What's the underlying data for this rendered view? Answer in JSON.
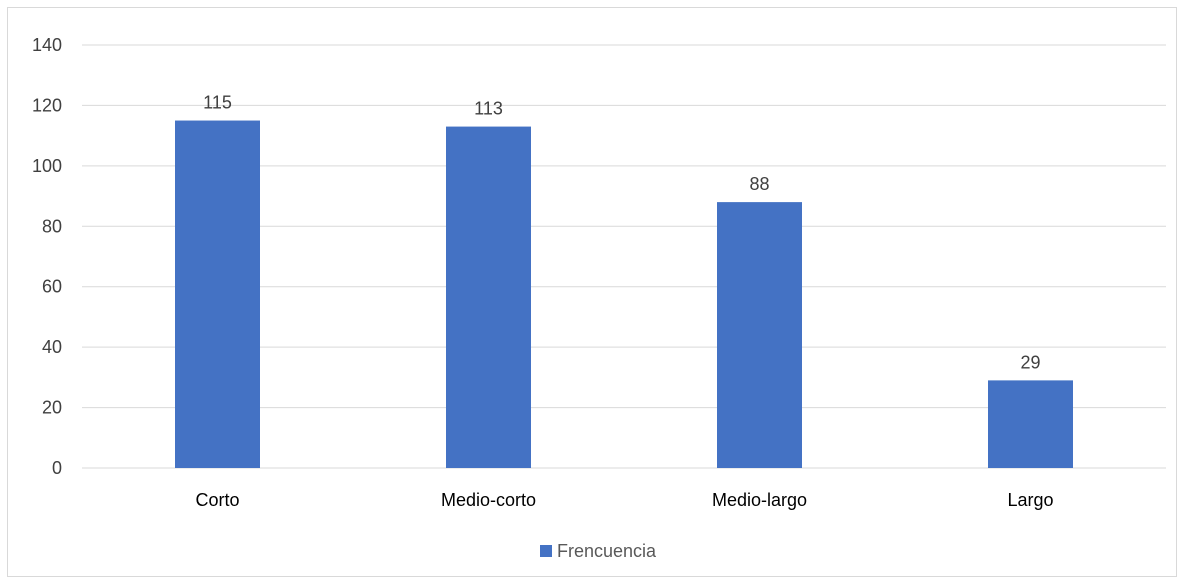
{
  "chart_data": {
    "type": "bar",
    "categories": [
      "Corto",
      "Medio-corto",
      "Medio-largo",
      "Largo"
    ],
    "series": [
      {
        "name": "Frencuencia",
        "values": [
          115,
          113,
          88,
          29
        ],
        "color": "#4472C4"
      }
    ],
    "data_labels": [
      "115",
      "113",
      "88",
      "29"
    ],
    "ylim": [
      0,
      140
    ],
    "yticks": [
      0,
      20,
      40,
      60,
      80,
      100,
      120,
      140
    ],
    "ytick_labels": [
      "0",
      "20",
      "40",
      "60",
      "80",
      "100",
      "120",
      "140"
    ],
    "grid": true,
    "legend_position": "bottom",
    "legend_label": "Frencuencia",
    "colors": {
      "bar": "#4472C4",
      "grid": "#d9d9d9",
      "axis": "#d9d9d9"
    }
  }
}
